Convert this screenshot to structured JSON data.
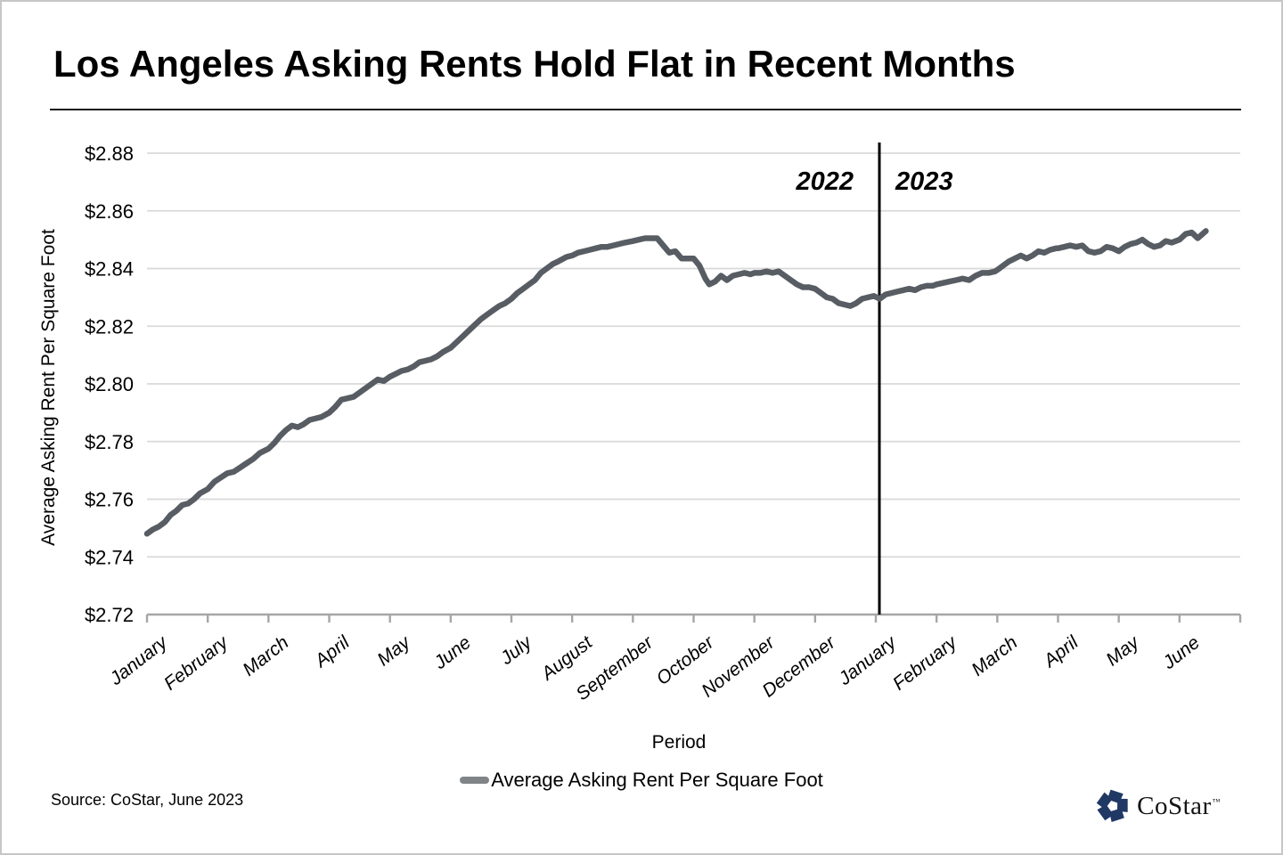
{
  "title": "Los Angeles Asking Rents Hold Flat in Recent Months",
  "chart_data": {
    "type": "line",
    "title": "Los Angeles Asking Rents Hold Flat in Recent Months",
    "xlabel": "Period",
    "ylabel": "Average Asking Rent Per Square Foot",
    "ylim": [
      2.72,
      2.88
    ],
    "grid": "horizontal",
    "legend_position": "bottom",
    "y_ticks": [
      {
        "label": "$2.72",
        "value": 2.72
      },
      {
        "label": "$2.74",
        "value": 2.74
      },
      {
        "label": "$2.76",
        "value": 2.76
      },
      {
        "label": "$2.78",
        "value": 2.78
      },
      {
        "label": "$2.80",
        "value": 2.8
      },
      {
        "label": "$2.82",
        "value": 2.82
      },
      {
        "label": "$2.84",
        "value": 2.84
      },
      {
        "label": "$2.86",
        "value": 2.86
      },
      {
        "label": "$2.88",
        "value": 2.88
      }
    ],
    "x_tick_labels": [
      "January",
      "February",
      "March",
      "April",
      "May",
      "June",
      "July",
      "August",
      "September",
      "October",
      "November",
      "December",
      "January",
      "February",
      "March",
      "April",
      "May",
      "June"
    ],
    "month_lengths": [
      31,
      28,
      31,
      30,
      31,
      30,
      31,
      31,
      30,
      31,
      30,
      31,
      31,
      28,
      31,
      30,
      31,
      30
    ],
    "year_divider": {
      "month_index": 12,
      "left_label": "2022",
      "right_label": "2023"
    },
    "series": [
      {
        "name": "Average Asking Rent Per Square Foot",
        "color": "#585d64",
        "points": [
          [
            0,
            2.748
          ],
          [
            3,
            2.7495
          ],
          [
            6,
            2.7505
          ],
          [
            9,
            2.752
          ],
          [
            12,
            2.7545
          ],
          [
            15,
            2.756
          ],
          [
            18,
            2.758
          ],
          [
            21,
            2.7585
          ],
          [
            24,
            2.76
          ],
          [
            27,
            2.762
          ],
          [
            31,
            2.7635
          ],
          [
            34,
            2.766
          ],
          [
            37,
            2.7675
          ],
          [
            40,
            2.769
          ],
          [
            43,
            2.7695
          ],
          [
            46,
            2.771
          ],
          [
            49,
            2.7725
          ],
          [
            52,
            2.774
          ],
          [
            55,
            2.776
          ],
          [
            59,
            2.7775
          ],
          [
            62,
            2.7795
          ],
          [
            65,
            2.782
          ],
          [
            68,
            2.784
          ],
          [
            71,
            2.7855
          ],
          [
            74,
            2.785
          ],
          [
            77,
            2.786
          ],
          [
            80,
            2.7875
          ],
          [
            83,
            2.788
          ],
          [
            86,
            2.7885
          ],
          [
            90,
            2.79
          ],
          [
            93,
            2.792
          ],
          [
            96,
            2.7945
          ],
          [
            99,
            2.795
          ],
          [
            102,
            2.7955
          ],
          [
            105,
            2.797
          ],
          [
            108,
            2.7985
          ],
          [
            111,
            2.8
          ],
          [
            114,
            2.8015
          ],
          [
            117,
            2.801
          ],
          [
            120,
            2.8025
          ],
          [
            123,
            2.8035
          ],
          [
            126,
            2.8045
          ],
          [
            129,
            2.805
          ],
          [
            132,
            2.806
          ],
          [
            135,
            2.8075
          ],
          [
            138,
            2.808
          ],
          [
            141,
            2.8085
          ],
          [
            144,
            2.8095
          ],
          [
            147,
            2.811
          ],
          [
            151,
            2.8125
          ],
          [
            154,
            2.8145
          ],
          [
            157,
            2.8165
          ],
          [
            160,
            2.8185
          ],
          [
            163,
            2.8205
          ],
          [
            166,
            2.8225
          ],
          [
            169,
            2.824
          ],
          [
            172,
            2.8255
          ],
          [
            175,
            2.827
          ],
          [
            178,
            2.828
          ],
          [
            181,
            2.8295
          ],
          [
            184,
            2.8315
          ],
          [
            187,
            2.833
          ],
          [
            190,
            2.8345
          ],
          [
            193,
            2.836
          ],
          [
            196,
            2.8385
          ],
          [
            199,
            2.84
          ],
          [
            202,
            2.8415
          ],
          [
            205,
            2.8425
          ],
          [
            209,
            2.844
          ],
          [
            212,
            2.8445
          ],
          [
            215,
            2.8455
          ],
          [
            218,
            2.846
          ],
          [
            221,
            2.8465
          ],
          [
            224,
            2.847
          ],
          [
            227,
            2.8475
          ],
          [
            230,
            2.8475
          ],
          [
            233,
            2.848
          ],
          [
            236,
            2.8485
          ],
          [
            239,
            2.849
          ],
          [
            243,
            2.8495
          ],
          [
            246,
            2.85
          ],
          [
            249,
            2.8505
          ],
          [
            252,
            2.8505
          ],
          [
            255,
            2.8505
          ],
          [
            258,
            2.848
          ],
          [
            261,
            2.8455
          ],
          [
            264,
            2.846
          ],
          [
            267,
            2.8435
          ],
          [
            270,
            2.8435
          ],
          [
            273,
            2.8435
          ],
          [
            276,
            2.841
          ],
          [
            279,
            2.8365
          ],
          [
            281,
            2.8345
          ],
          [
            284,
            2.8355
          ],
          [
            287,
            2.8375
          ],
          [
            290,
            2.836
          ],
          [
            293,
            2.8375
          ],
          [
            296,
            2.838
          ],
          [
            299,
            2.8385
          ],
          [
            302,
            2.838
          ],
          [
            304,
            2.8385
          ],
          [
            307,
            2.8385
          ],
          [
            310,
            2.839
          ],
          [
            313,
            2.8385
          ],
          [
            316,
            2.839
          ],
          [
            319,
            2.8375
          ],
          [
            322,
            2.836
          ],
          [
            325,
            2.8345
          ],
          [
            328,
            2.8335
          ],
          [
            331,
            2.8335
          ],
          [
            334,
            2.833
          ],
          [
            337,
            2.8315
          ],
          [
            340,
            2.83
          ],
          [
            343,
            2.8295
          ],
          [
            346,
            2.828
          ],
          [
            349,
            2.8275
          ],
          [
            352,
            2.827
          ],
          [
            355,
            2.828
          ],
          [
            358,
            2.8295
          ],
          [
            361,
            2.83
          ],
          [
            364,
            2.8305
          ],
          [
            367,
            2.8295
          ],
          [
            370,
            2.831
          ],
          [
            373,
            2.8315
          ],
          [
            376,
            2.832
          ],
          [
            379,
            2.8325
          ],
          [
            382,
            2.833
          ],
          [
            385,
            2.8325
          ],
          [
            388,
            2.8335
          ],
          [
            391,
            2.834
          ],
          [
            394,
            2.834
          ],
          [
            396,
            2.8345
          ],
          [
            399,
            2.835
          ],
          [
            402,
            2.8355
          ],
          [
            405,
            2.836
          ],
          [
            408,
            2.8365
          ],
          [
            411,
            2.836
          ],
          [
            414,
            2.8375
          ],
          [
            417,
            2.8385
          ],
          [
            420,
            2.8385
          ],
          [
            423,
            2.839
          ],
          [
            424,
            2.8395
          ],
          [
            427,
            2.841
          ],
          [
            430,
            2.8425
          ],
          [
            433,
            2.8435
          ],
          [
            436,
            2.8445
          ],
          [
            439,
            2.8435
          ],
          [
            442,
            2.8445
          ],
          [
            445,
            2.846
          ],
          [
            448,
            2.8455
          ],
          [
            451,
            2.8465
          ],
          [
            454,
            2.847
          ],
          [
            455,
            2.847
          ],
          [
            458,
            2.8475
          ],
          [
            461,
            2.848
          ],
          [
            464,
            2.8475
          ],
          [
            467,
            2.848
          ],
          [
            470,
            2.846
          ],
          [
            473,
            2.8455
          ],
          [
            476,
            2.846
          ],
          [
            479,
            2.8475
          ],
          [
            482,
            2.847
          ],
          [
            485,
            2.846
          ],
          [
            488,
            2.8475
          ],
          [
            491,
            2.8485
          ],
          [
            494,
            2.849
          ],
          [
            497,
            2.85
          ],
          [
            500,
            2.8485
          ],
          [
            503,
            2.8475
          ],
          [
            506,
            2.848
          ],
          [
            509,
            2.8495
          ],
          [
            512,
            2.849
          ],
          [
            516,
            2.85
          ],
          [
            519,
            2.852
          ],
          [
            522,
            2.8525
          ],
          [
            525,
            2.8505
          ],
          [
            529,
            2.853
          ]
        ]
      }
    ]
  },
  "legend": {
    "label": "Average Asking Rent Per Square Foot",
    "swatch_color": "#808487"
  },
  "source": {
    "text": "Source: CoStar, June 2023"
  },
  "branding": {
    "name": "CoStar",
    "tm": "™",
    "icon_color": "#203864"
  },
  "colors": {
    "series_line": "#585d64",
    "gridline": "#d9d9d9",
    "axis": "#a6a6a6",
    "divider": "#000000",
    "text": "#000000"
  }
}
